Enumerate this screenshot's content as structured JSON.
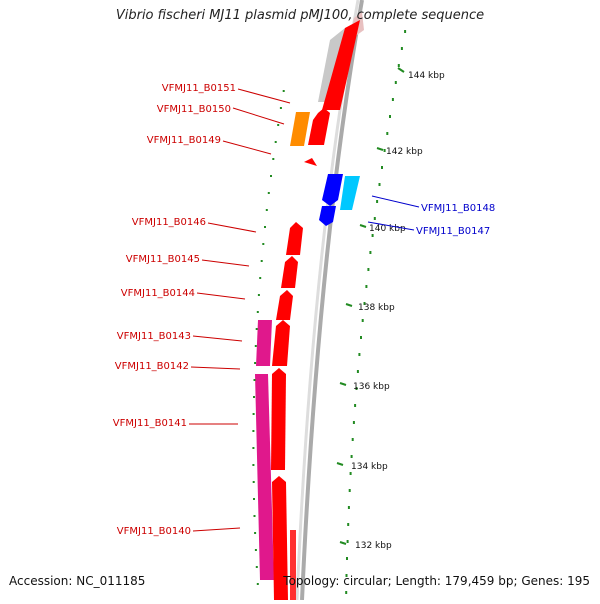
{
  "title": "Vibrio fischeri MJ11 plasmid pMJ100, complete sequence",
  "accession": "Accession: NC_011185",
  "topology": "Topology: circular; Length: 179,459 bp; Genes: 195",
  "colors": {
    "forward_cds": "#ff0000",
    "reverse_cds": "#0000ff",
    "reverse_alt": "#00c8ff",
    "orange_feature": "#ff8c00",
    "magenta_feature": "#e0188c",
    "gray_feature": "#c8c8c8",
    "backbone": "#999999",
    "gc_tick": "#228b22",
    "label_forward": "#cc0000",
    "label_reverse": "#0000cc"
  },
  "kbp_labels": [
    "144 kbp",
    "142 kbp",
    "140 kbp",
    "138 kbp",
    "136 kbp",
    "134 kbp",
    "132 kbp"
  ],
  "genes_left": [
    "VFMJ11_B0151",
    "VFMJ11_B0150",
    "VFMJ11_B0149",
    "VFMJ11_B0146",
    "VFMJ11_B0145",
    "VFMJ11_B0144",
    "VFMJ11_B0143",
    "VFMJ11_B0142",
    "VFMJ11_B0141",
    "VFMJ11_B0140"
  ],
  "genes_right": [
    "VFMJ11_B0148",
    "VFMJ11_B0147"
  ]
}
